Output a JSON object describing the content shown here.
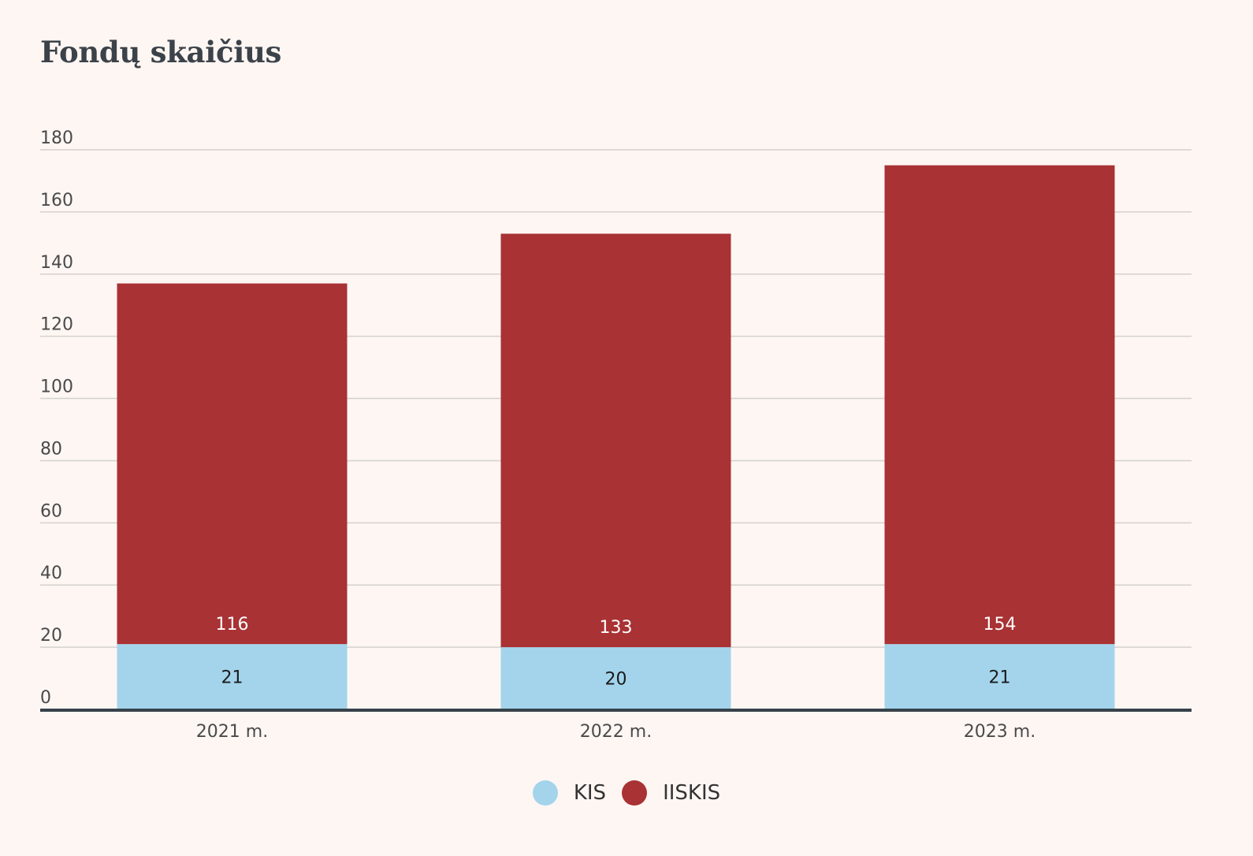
{
  "chart_data": {
    "type": "bar",
    "stacked": true,
    "title": "Fondų skaičius",
    "categories": [
      "2021 m.",
      "2022 m.",
      "2023 m."
    ],
    "series": [
      {
        "name": "KIS",
        "values": [
          21,
          20,
          21
        ],
        "color": "#a3d4ec",
        "label_color": "#1a1a1a"
      },
      {
        "name": "IISKIS",
        "values": [
          116,
          133,
          154
        ],
        "color": "#a93234",
        "label_color": "#ffffff"
      }
    ],
    "ylim": [
      0,
      180
    ],
    "yticks": [
      0,
      20,
      40,
      60,
      80,
      100,
      120,
      140,
      160,
      180
    ],
    "grid": true,
    "legend_position": "bottom-center"
  }
}
